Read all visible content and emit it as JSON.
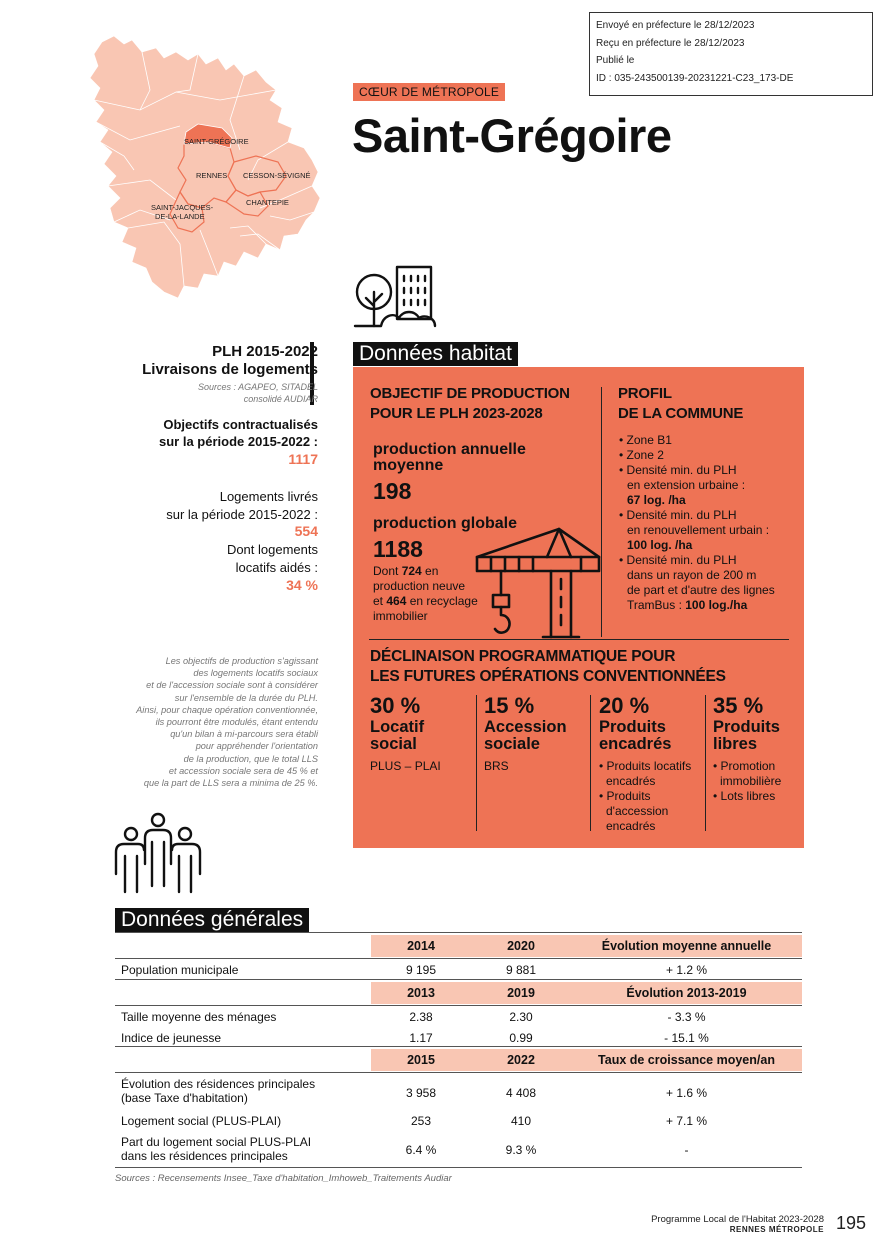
{
  "stamp": {
    "line1": "Envoyé en préfecture le 28/12/2023",
    "line2": "Reçu en préfecture le 28/12/2023",
    "line3": "Publié le",
    "line4": "ID : 035-243500139-20231221-C23_173-DE"
  },
  "map": {
    "labels": {
      "saint_gregoire": "SAINT-GRÉGOIRE",
      "rennes": "RENNES",
      "cesson": "CESSON-SÉVIGNÉ",
      "chantepie": "CHANTEPIE",
      "sjdll_1": "SAINT-JACQUES-",
      "sjdll_2": "DE-LA-LANDE"
    },
    "colors": {
      "fill": "#f9c6b3",
      "highlight": "#ee7355",
      "outline": "#ee7355"
    }
  },
  "header": {
    "zone": "CŒUR DE MÉTROPOLE",
    "city": "Saint-Grégoire"
  },
  "habitat": {
    "section_title": "Données habitat",
    "icon": "tree-building-icon"
  },
  "left": {
    "plh_line1": "PLH 2015-2022",
    "plh_line2": "Livraisons de logements",
    "src_line1": "Sources : AGAPEO, SITADEL",
    "src_line2": "consolidé AUDIAR",
    "obj_line1": "Objectifs contractualisés",
    "obj_line2": "sur la période 2015-2022 :",
    "obj_value": "1117",
    "liv_line1": "Logements livrés",
    "liv_line2": "sur la période 2015-2022 :",
    "liv_value": "554",
    "dont_line1": "Dont logements",
    "dont_line2": "locatifs aidés :",
    "dont_value": "34 %",
    "note": [
      "Les objectifs de production s'agissant",
      "des logements locatifs sociaux",
      "et de l'accession sociale sont à considérer",
      "sur l'ensemble de la durée du PLH.",
      "Ainsi, pour chaque opération conventionnée,",
      "ils pourront être modulés, étant entendu",
      "qu'un bilan à mi-parcours sera établi",
      "pour appréhender l'orientation",
      "de la production, que le total LLS",
      "et accession sociale sera de 45 % et",
      "que la part de LLS sera a minima de 25 %."
    ]
  },
  "objectif": {
    "title1": "OBJECTIF DE PRODUCTION",
    "title2": "POUR LE PLH 2023-2028",
    "annual_label1": "production annuelle",
    "annual_label2": "moyenne",
    "annual_value": "198",
    "global_label": "production globale",
    "global_value": "1188",
    "dont_a": "Dont ",
    "dont_b": "724",
    "dont_c": " en",
    "dont_d": "production neuve",
    "dont_e": "et ",
    "dont_f": "464",
    "dont_g": " en recyclage",
    "dont_h": "immobilier",
    "icon": "crane-icon"
  },
  "profil": {
    "title1": "PROFIL",
    "title2": "DE LA COMMUNE",
    "z1": "• Zone B1",
    "z2": "• Zone 2",
    "d1a": "• Densité min. du PLH",
    "d1b": "en extension urbaine :",
    "d1c": "67 log. /ha",
    "d2a": "• Densité min. du PLH",
    "d2b": "en renouvellement urbain :",
    "d2c": "100 log. /ha",
    "d3a": "• Densité min. du PLH",
    "d3b": "dans un rayon de 200 m",
    "d3c": "de part et d'autre des lignes",
    "d3d": "TramBus : ",
    "d3e": "100 log./ha"
  },
  "declinaison": {
    "title1": "DÉCLINAISON PROGRAMMATIQUE POUR",
    "title2": "LES FUTURES OPÉRATIONS CONVENTIONNÉES",
    "cols": [
      {
        "pct": "30 %",
        "cat1": "Locatif",
        "cat2": "social",
        "desc": [
          "PLUS – PLAI"
        ]
      },
      {
        "pct": "15 %",
        "cat1": "Accession",
        "cat2": "sociale",
        "desc": [
          "BRS"
        ]
      },
      {
        "pct": "20 %",
        "cat1": "Produits",
        "cat2": "encadrés",
        "desc": [
          "• Produits locatifs",
          "encadrés",
          "• Produits",
          "d'accession",
          "encadrés"
        ]
      },
      {
        "pct": "35 %",
        "cat1": "Produits",
        "cat2": "libres",
        "desc": [
          "• Promotion",
          "immobilière",
          "• Lots libres"
        ]
      }
    ]
  },
  "generales": {
    "section_title": "Données générales",
    "icon": "people-icon",
    "h1": {
      "a": "2014",
      "b": "2020",
      "c": "Évolution moyenne annuelle"
    },
    "r1": {
      "label": "Population municipale",
      "a": "9 195",
      "b": "9 881",
      "c": "+ 1.2 %"
    },
    "h2": {
      "a": "2013",
      "b": "2019",
      "c": "Évolution 2013-2019"
    },
    "r2": {
      "label": "Taille moyenne des ménages",
      "a": "2.38",
      "b": "2.30",
      "c": "- 3.3 %"
    },
    "r3": {
      "label": "Indice de jeunesse",
      "a": "1.17",
      "b": "0.99",
      "c": "- 15.1 %"
    },
    "h3": {
      "a": "2015",
      "b": "2022",
      "c": "Taux de croissance moyen/an"
    },
    "r4": {
      "label1": "Évolution des résidences principales",
      "label2": "(base Taxe d'habitation)",
      "a": "3 958",
      "b": "4 408",
      "c": "+ 1.6 %"
    },
    "r5": {
      "label": "Logement social (PLUS-PLAI)",
      "a": "253",
      "b": "410",
      "c": "+ 7.1 %"
    },
    "r6": {
      "label1": "Part du logement social PLUS-PLAI",
      "label2": "dans les résidences principales",
      "a": "6.4 %",
      "b": "9.3 %",
      "c": "-"
    },
    "sources": "Sources : Recensements Insee_Taxe d'habitation_Imhoweb_Traitements Audiar"
  },
  "footer": {
    "line1": "Programme Local de l'Habitat 2023-2028",
    "line2": "RENNES MÉTROPOLE",
    "page": "195"
  }
}
